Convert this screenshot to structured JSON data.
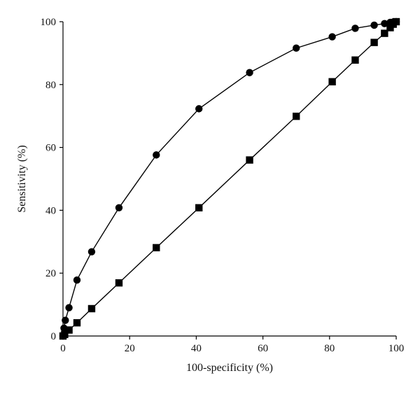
{
  "chart_data": {
    "type": "line",
    "xlabel": "100-specificity (%)",
    "ylabel": "Sensitivity (%)",
    "xlim": [
      0,
      100
    ],
    "ylim": [
      0,
      100
    ],
    "x_ticks": [
      0,
      20,
      40,
      60,
      80,
      100
    ],
    "y_ticks": [
      0,
      20,
      40,
      60,
      80,
      100
    ],
    "grid": false,
    "series": [
      {
        "marker": "circle",
        "color": "#000000",
        "points": [
          {
            "x": 0,
            "y": 0
          },
          {
            "x": 0.3,
            "y": 2.5
          },
          {
            "x": 0.7,
            "y": 5
          },
          {
            "x": 1.8,
            "y": 9
          },
          {
            "x": 4.2,
            "y": 17.8
          },
          {
            "x": 8.6,
            "y": 26.8
          },
          {
            "x": 16.8,
            "y": 40.8
          },
          {
            "x": 28,
            "y": 57.6
          },
          {
            "x": 40.8,
            "y": 72.3
          },
          {
            "x": 56,
            "y": 83.8
          },
          {
            "x": 70,
            "y": 91.6
          },
          {
            "x": 80.8,
            "y": 95.2
          },
          {
            "x": 87.7,
            "y": 97.9
          },
          {
            "x": 93.4,
            "y": 98.9
          },
          {
            "x": 96.5,
            "y": 99.4
          },
          {
            "x": 98.2,
            "y": 99.8
          },
          {
            "x": 99.1,
            "y": 99.9
          },
          {
            "x": 100,
            "y": 100
          }
        ]
      },
      {
        "marker": "square",
        "color": "#000000",
        "points": [
          {
            "x": 0,
            "y": 0
          },
          {
            "x": 0.5,
            "y": 0.5
          },
          {
            "x": 1.8,
            "y": 1.9
          },
          {
            "x": 4.2,
            "y": 4.2
          },
          {
            "x": 8.6,
            "y": 8.7
          },
          {
            "x": 16.8,
            "y": 16.9
          },
          {
            "x": 28,
            "y": 28.1
          },
          {
            "x": 40.8,
            "y": 40.8
          },
          {
            "x": 56,
            "y": 56
          },
          {
            "x": 70,
            "y": 69.9
          },
          {
            "x": 80.8,
            "y": 80.9
          },
          {
            "x": 87.7,
            "y": 87.8
          },
          {
            "x": 93.4,
            "y": 93.4
          },
          {
            "x": 96.5,
            "y": 96.3
          },
          {
            "x": 98.2,
            "y": 98.1
          },
          {
            "x": 99.1,
            "y": 99.2
          },
          {
            "x": 100,
            "y": 100
          }
        ]
      }
    ]
  }
}
